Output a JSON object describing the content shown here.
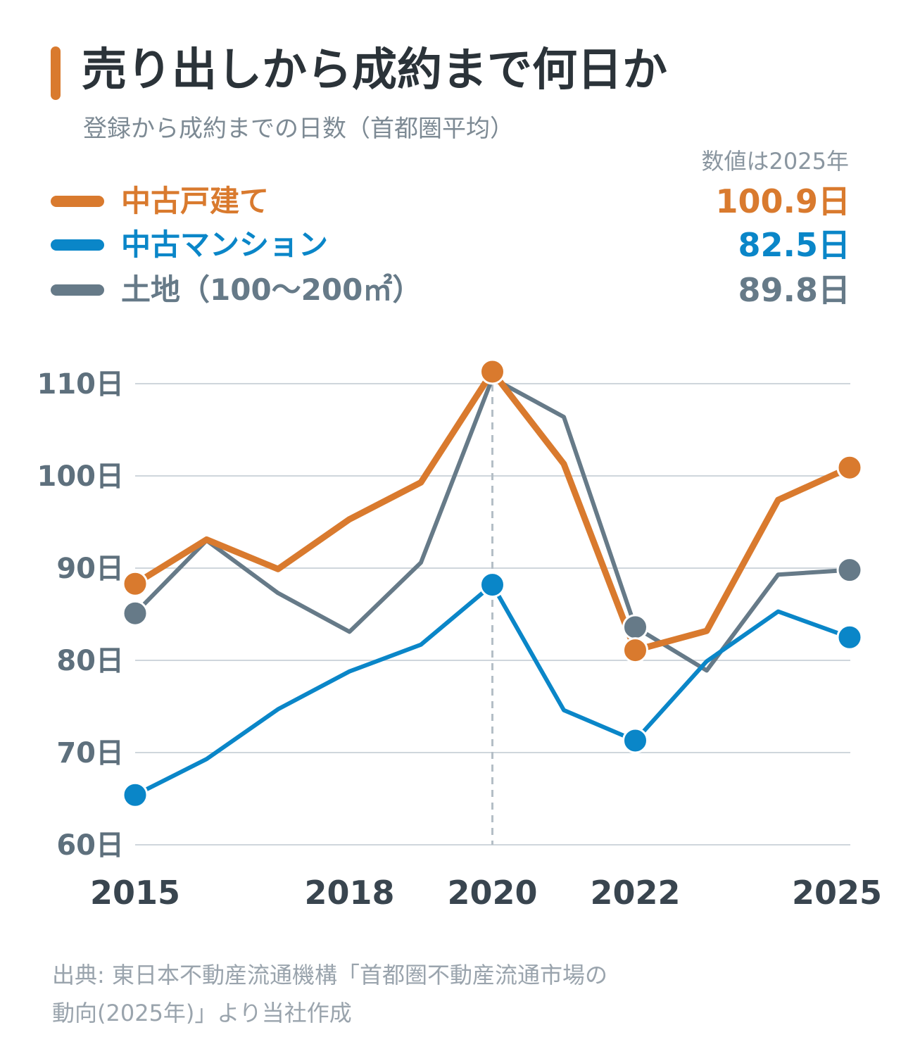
{
  "header": {
    "title": "売り出しから成約まで何日か",
    "subtitle": "登録から成約までの日数（首都圏平均）",
    "value_note": "数値は2025年"
  },
  "legend": [
    {
      "label": "中古戸建て",
      "value": "100.9日",
      "color": "#d97a2e"
    },
    {
      "label": "中古マンション",
      "value": "82.5日",
      "color": "#0a86c8"
    },
    {
      "label": "土地（100〜200㎡）",
      "value": "89.8日",
      "color": "#667a88"
    }
  ],
  "chart_data": {
    "type": "line",
    "x": [
      2015,
      2016,
      2017,
      2018,
      2019,
      2020,
      2021,
      2022,
      2023,
      2024,
      2025
    ],
    "x_tick_labels": [
      "2015",
      "2018",
      "2020",
      "2022",
      "2025"
    ],
    "y_tick_labels": [
      "110日",
      "100日",
      "90日",
      "80日",
      "70日",
      "60日"
    ],
    "ylim": [
      60,
      110
    ],
    "grid": true,
    "reference_line_x": 2020,
    "series": [
      {
        "name": "中古戸建て",
        "color": "#d97a2e",
        "values": [
          88.3,
          93.1,
          89.9,
          95.3,
          99.3,
          111.3,
          101.3,
          81.1,
          83.2,
          97.4,
          100.9
        ],
        "markers": [
          2015,
          2020,
          2022,
          2025
        ]
      },
      {
        "name": "中古マンション",
        "color": "#0a86c8",
        "values": [
          65.4,
          69.3,
          74.7,
          78.8,
          81.7,
          88.2,
          74.6,
          71.3,
          79.9,
          85.3,
          82.5
        ],
        "markers": [
          2015,
          2020,
          2022,
          2025
        ]
      },
      {
        "name": "土地（100〜200㎡）",
        "color": "#667a88",
        "values": [
          85.1,
          93.0,
          87.3,
          83.1,
          90.6,
          110.6,
          106.4,
          83.6,
          78.9,
          89.3,
          89.8
        ],
        "markers": [
          2015,
          2022,
          2025
        ]
      }
    ]
  },
  "source": {
    "line1": "出典: 東日本不動産流通機構「首都圏不動産流通市場の",
    "line2": "動向(2025年)」より当社作成"
  }
}
